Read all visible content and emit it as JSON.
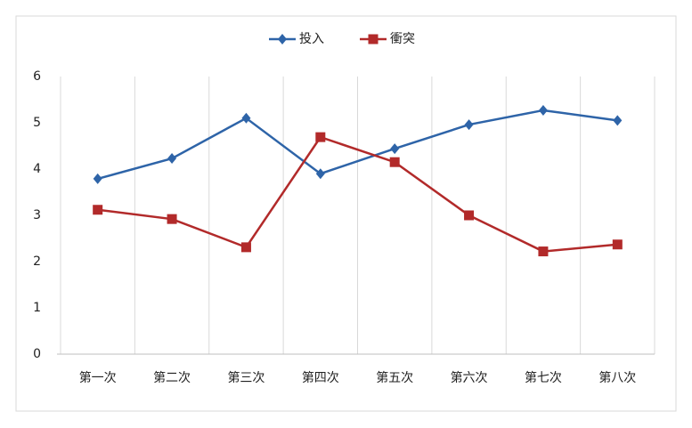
{
  "chart_data": {
    "type": "line",
    "categories": [
      "第一次",
      "第二次",
      "第三次",
      "第四次",
      "第五次",
      "第六次",
      "第七次",
      "第八次"
    ],
    "series": [
      {
        "name": "投入",
        "color": "#2e64a8",
        "marker": "diamond",
        "values": [
          3.79,
          4.23,
          5.1,
          3.9,
          4.44,
          4.96,
          5.27,
          5.05
        ]
      },
      {
        "name": "衝突",
        "color": "#b22a2a",
        "marker": "square",
        "values": [
          3.12,
          2.92,
          2.31,
          4.69,
          4.15,
          3.0,
          2.22,
          2.37
        ]
      }
    ],
    "ylim": [
      0,
      6
    ],
    "yticks": [
      0,
      1,
      2,
      3,
      4,
      5,
      6
    ],
    "legend": "top"
  }
}
